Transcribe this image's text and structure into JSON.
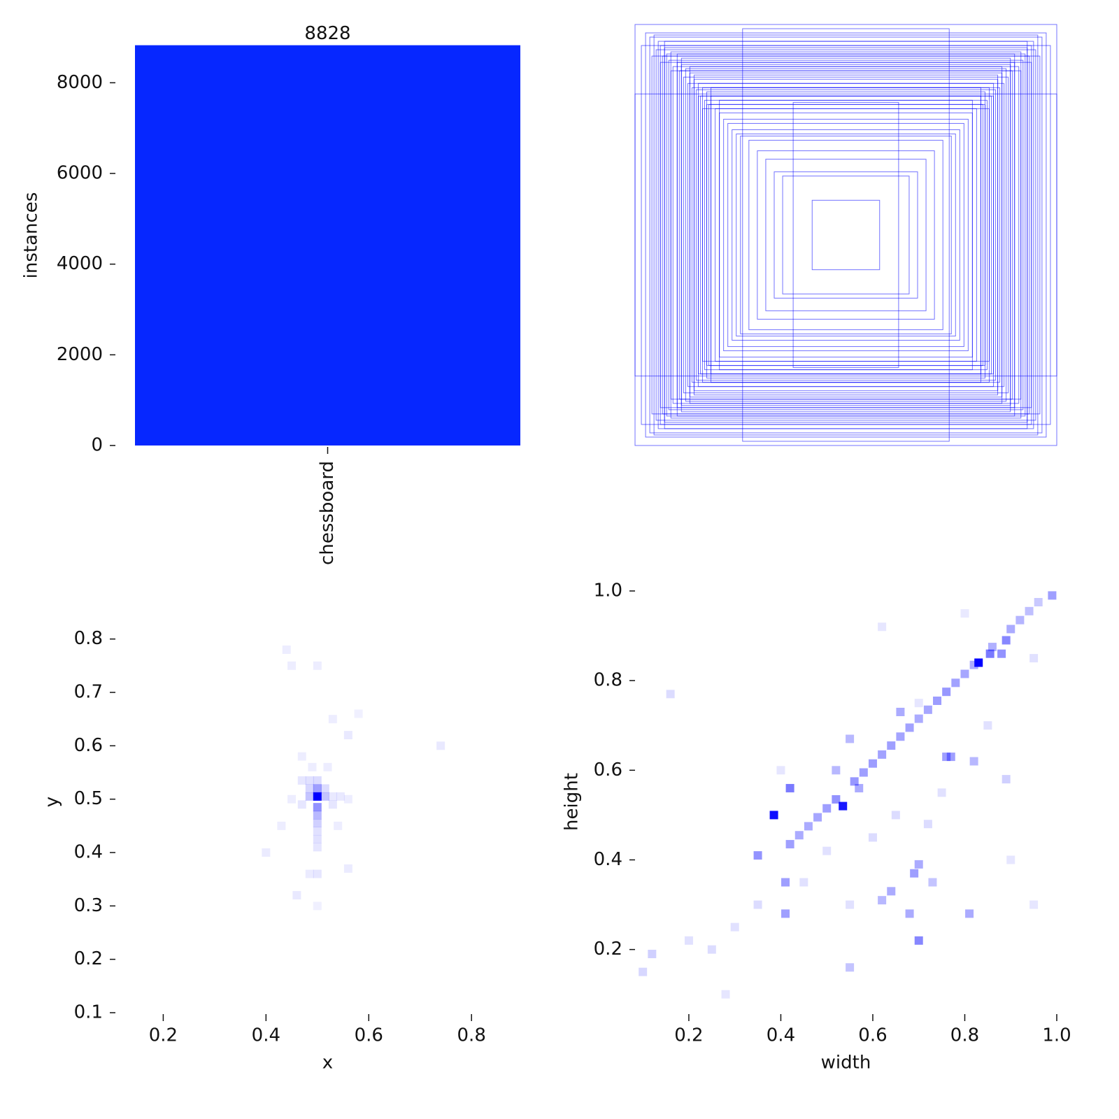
{
  "chart_data": [
    {
      "type": "bar",
      "ylabel": "instances",
      "categories": [
        "chessboard"
      ],
      "values": [
        8828
      ],
      "color": "#0627ff",
      "ylim": [
        0,
        9270
      ],
      "yticks": [
        0,
        2000,
        4000,
        6000,
        8000
      ]
    },
    {
      "type": "boxes",
      "color": "#0000ff",
      "xlim": [
        0,
        1
      ],
      "ylim": [
        0,
        1
      ],
      "width": [
        1.0,
        0.49,
        1.0,
        0.95,
        0.93,
        0.9,
        0.89,
        0.88,
        0.87,
        0.86,
        0.85,
        0.84,
        0.83,
        0.82,
        0.8,
        0.79,
        0.78,
        0.77,
        0.76,
        0.75,
        0.74,
        0.73,
        0.72,
        0.71,
        0.7,
        0.69,
        0.68,
        0.67,
        0.66,
        0.65,
        0.64,
        0.62,
        0.6,
        0.58,
        0.56,
        0.54,
        0.52,
        0.5,
        0.46,
        0.42,
        0.38,
        0.34,
        0.3,
        0.25,
        0.16,
        0.97,
        0.91,
        0.83,
        0.78,
        0.72,
        0.68,
        0.6,
        0.88,
        0.8,
        0.7,
        0.64,
        0.92,
        0.86,
        0.74,
        0.66
      ],
      "height": [
        1.0,
        0.98,
        0.67,
        0.96,
        0.94,
        0.88,
        0.92,
        0.9,
        0.85,
        0.89,
        0.86,
        0.83,
        0.87,
        0.8,
        0.82,
        0.78,
        0.81,
        0.75,
        0.79,
        0.72,
        0.77,
        0.7,
        0.74,
        0.69,
        0.72,
        0.66,
        0.7,
        0.64,
        0.68,
        0.62,
        0.66,
        0.6,
        0.58,
        0.55,
        0.53,
        0.5,
        0.48,
        0.47,
        0.45,
        0.4,
        0.36,
        0.3,
        0.28,
        0.63,
        0.165,
        0.9,
        0.95,
        0.78,
        0.84,
        0.76,
        0.6,
        0.64,
        0.82,
        0.86,
        0.66,
        0.7,
        0.85,
        0.92,
        0.8,
        0.62
      ]
    },
    {
      "type": "heatmap",
      "xlabel": "x",
      "ylabel": "y",
      "color": "#0000ff",
      "xlim": [
        0.145,
        0.895
      ],
      "ylim": [
        0.1,
        0.89
      ],
      "xticks": [
        0.2,
        0.4,
        0.6,
        0.8
      ],
      "yticks": [
        0.1,
        0.2,
        0.3,
        0.4,
        0.5,
        0.6,
        0.7,
        0.8
      ],
      "x": [
        0.5,
        0.5,
        0.5,
        0.5,
        0.485,
        0.515,
        0.5,
        0.485,
        0.515,
        0.485,
        0.47,
        0.5,
        0.5,
        0.5,
        0.5,
        0.5,
        0.47,
        0.53,
        0.53,
        0.545,
        0.56,
        0.46,
        0.485,
        0.56,
        0.4,
        0.56,
        0.74,
        0.5,
        0.45,
        0.44,
        0.53,
        0.58,
        0.5,
        0.47,
        0.43,
        0.54,
        0.45,
        0.52,
        0.49
      ],
      "y": [
        0.505,
        0.485,
        0.52,
        0.47,
        0.505,
        0.505,
        0.455,
        0.52,
        0.52,
        0.535,
        0.535,
        0.535,
        0.44,
        0.425,
        0.41,
        0.36,
        0.49,
        0.49,
        0.505,
        0.505,
        0.5,
        0.32,
        0.36,
        0.37,
        0.4,
        0.62,
        0.6,
        0.75,
        0.75,
        0.78,
        0.65,
        0.66,
        0.3,
        0.58,
        0.45,
        0.45,
        0.5,
        0.56,
        0.56
      ],
      "values": [
        100,
        40,
        35,
        25,
        20,
        20,
        15,
        12,
        10,
        8,
        6,
        10,
        8,
        8,
        6,
        6,
        6,
        6,
        5,
        5,
        3,
        5,
        4,
        4,
        4,
        5,
        5,
        3,
        3,
        3,
        3,
        2,
        2,
        3,
        3,
        3,
        3,
        3,
        3
      ]
    },
    {
      "type": "heatmap",
      "xlabel": "width",
      "ylabel": "height",
      "color": "#0000ff",
      "xlim": [
        0.083,
        1.0
      ],
      "ylim": [
        0.059,
        1.0
      ],
      "xticks": [
        0.2,
        0.4,
        0.6,
        0.8,
        {
          "value": 1,
          "label": "1.0"
        }
      ],
      "yticks": [
        0.2,
        0.4,
        0.6,
        0.8,
        {
          "value": 1,
          "label": "1.0"
        }
      ],
      "x": [
        0.83,
        0.385,
        0.535,
        0.42,
        0.35,
        0.41,
        0.41,
        0.99,
        0.855,
        0.88,
        0.89,
        0.7,
        0.69,
        0.7,
        0.64,
        0.62,
        0.77,
        0.76,
        0.81,
        0.68,
        0.66,
        0.55,
        0.57,
        0.52,
        0.82,
        0.89,
        0.55,
        0.73,
        0.12,
        0.1,
        0.16,
        0.42,
        0.44,
        0.46,
        0.48,
        0.5,
        0.52,
        0.56,
        0.58,
        0.6,
        0.62,
        0.64,
        0.66,
        0.68,
        0.7,
        0.72,
        0.74,
        0.76,
        0.78,
        0.8,
        0.82,
        0.86,
        0.9,
        0.92,
        0.94,
        0.96,
        0.3,
        0.25,
        0.2,
        0.35,
        0.45,
        0.6,
        0.65,
        0.75,
        0.85,
        0.95,
        0.28,
        0.5,
        0.72,
        0.9,
        0.62,
        0.4,
        0.8,
        0.55,
        0.7,
        0.95
      ],
      "y": [
        0.84,
        0.5,
        0.52,
        0.56,
        0.41,
        0.35,
        0.28,
        0.99,
        0.86,
        0.86,
        0.89,
        0.22,
        0.37,
        0.39,
        0.33,
        0.31,
        0.63,
        0.63,
        0.28,
        0.28,
        0.73,
        0.67,
        0.56,
        0.6,
        0.62,
        0.58,
        0.16,
        0.35,
        0.19,
        0.15,
        0.77,
        0.435,
        0.455,
        0.475,
        0.495,
        0.515,
        0.535,
        0.575,
        0.595,
        0.615,
        0.635,
        0.655,
        0.675,
        0.695,
        0.715,
        0.735,
        0.755,
        0.775,
        0.795,
        0.815,
        0.835,
        0.875,
        0.915,
        0.935,
        0.955,
        0.975,
        0.25,
        0.2,
        0.22,
        0.3,
        0.35,
        0.45,
        0.5,
        0.55,
        0.7,
        0.85,
        0.1,
        0.42,
        0.48,
        0.4,
        0.92,
        0.6,
        0.95,
        0.3,
        0.75,
        0.3
      ],
      "values": [
        100,
        95,
        90,
        50,
        40,
        35,
        35,
        35,
        50,
        40,
        45,
        45,
        35,
        30,
        30,
        25,
        35,
        35,
        30,
        30,
        30,
        25,
        30,
        25,
        25,
        15,
        20,
        20,
        15,
        12,
        10,
        35,
        30,
        30,
        32,
        35,
        40,
        38,
        35,
        36,
        34,
        35,
        33,
        34,
        30,
        32,
        36,
        38,
        34,
        32,
        30,
        28,
        30,
        26,
        22,
        18,
        8,
        10,
        8,
        10,
        8,
        10,
        10,
        8,
        8,
        8,
        6,
        8,
        10,
        6,
        6,
        6,
        5,
        8,
        6,
        6
      ]
    }
  ]
}
